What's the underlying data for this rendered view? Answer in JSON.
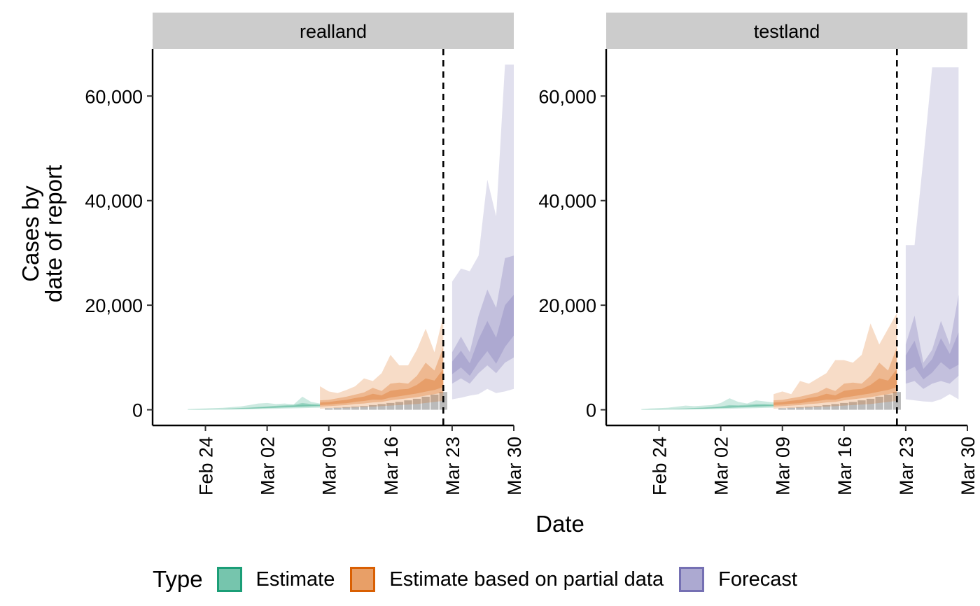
{
  "chart_data": {
    "type": "area",
    "ylabel_lines": [
      "Cases by",
      "date of report"
    ],
    "xlabel": "Date",
    "y_ticks": [
      0,
      20000,
      40000,
      60000
    ],
    "y_tick_labels": [
      "0",
      "20,000",
      "40,000",
      "60,000"
    ],
    "ylim": [
      -3000,
      69000
    ],
    "x_ticks": [
      "2020-02-24",
      "2020-03-02",
      "2020-03-09",
      "2020-03-16",
      "2020-03-23",
      "2020-03-30"
    ],
    "x_tick_labels": [
      "Feb 24",
      "Mar 02",
      "Mar 09",
      "Mar 16",
      "Mar 23",
      "Mar 30"
    ],
    "xlim": [
      "2020-02-18",
      "2020-03-30"
    ],
    "colors": {
      "estimate": "#1b9e77",
      "partial": "#d95f02",
      "forecast": "#7570b3",
      "reported": "#9e9e9e",
      "strip": "#cccccc"
    },
    "legend": {
      "title": "Type",
      "items": [
        {
          "key": "estimate",
          "label": "Estimate"
        },
        {
          "key": "partial",
          "label": "Estimate based on partial data"
        },
        {
          "key": "forecast",
          "label": "Forecast"
        }
      ]
    },
    "panels": [
      {
        "name": "realland",
        "vline_date": "2020-03-22",
        "estimate": {
          "dates": [
            "2020-02-22",
            "2020-02-23",
            "2020-02-24",
            "2020-02-25",
            "2020-02-26",
            "2020-02-27",
            "2020-02-28",
            "2020-02-29",
            "2020-03-01",
            "2020-03-02",
            "2020-03-03",
            "2020-03-04",
            "2020-03-05",
            "2020-03-06",
            "2020-03-07",
            "2020-03-08"
          ],
          "median": [
            40,
            60,
            80,
            100,
            130,
            170,
            220,
            280,
            350,
            430,
            520,
            600,
            680,
            760,
            830,
            880
          ],
          "lower90": [
            10,
            20,
            25,
            35,
            45,
            60,
            80,
            100,
            130,
            160,
            200,
            240,
            280,
            320,
            360,
            400
          ],
          "upper90": [
            150,
            200,
            250,
            300,
            380,
            500,
            650,
            900,
            1200,
            1300,
            1100,
            1200,
            1000,
            2500,
            1500,
            1200
          ],
          "lower50": [
            25,
            35,
            50,
            65,
            85,
            110,
            150,
            190,
            240,
            300,
            360,
            420,
            480,
            540,
            600,
            650
          ],
          "upper50": [
            70,
            100,
            130,
            160,
            200,
            260,
            340,
            430,
            530,
            640,
            760,
            860,
            960,
            1300,
            1100,
            1000
          ]
        },
        "partial": {
          "dates": [
            "2020-03-08",
            "2020-03-09",
            "2020-03-10",
            "2020-03-11",
            "2020-03-12",
            "2020-03-13",
            "2020-03-14",
            "2020-03-15",
            "2020-03-16",
            "2020-03-17",
            "2020-03-18",
            "2020-03-19",
            "2020-03-20",
            "2020-03-21",
            "2020-03-22"
          ],
          "median": [
            1100,
            1200,
            1400,
            1500,
            1800,
            2000,
            2300,
            2200,
            2700,
            3000,
            3300,
            3600,
            4000,
            4300,
            5000
          ],
          "lower90": [
            200,
            300,
            350,
            400,
            450,
            500,
            600,
            700,
            800,
            900,
            1000,
            1100,
            1300,
            1500,
            1700
          ],
          "upper90": [
            4500,
            3500,
            3200,
            3800,
            4500,
            6000,
            5500,
            7000,
            10500,
            8500,
            8500,
            11500,
            15500,
            11000,
            18000
          ],
          "lower50": [
            600,
            700,
            800,
            900,
            1100,
            1200,
            1400,
            1500,
            1800,
            2000,
            2200,
            2400,
            2700,
            3000,
            3300
          ],
          "upper50": [
            1800,
            1900,
            2200,
            2500,
            2900,
            3300,
            4200,
            3600,
            5000,
            5200,
            5000,
            6500,
            9000,
            7500,
            12000
          ]
        },
        "forecast": {
          "dates": [
            "2020-03-23",
            "2020-03-24",
            "2020-03-25",
            "2020-03-26",
            "2020-03-27",
            "2020-03-28",
            "2020-03-29",
            "2020-03-30"
          ],
          "median": [
            8000,
            9500,
            7500,
            10500,
            13000,
            10000,
            14000,
            17000
          ],
          "lower90": [
            2000,
            2300,
            2700,
            3000,
            4000,
            3200,
            3500,
            4000
          ],
          "upper90": [
            24500,
            27000,
            26500,
            29500,
            44000,
            37000,
            66000,
            66000
          ],
          "lower50": [
            5000,
            6000,
            5000,
            7000,
            8500,
            7000,
            9000,
            10000
          ],
          "upper50": [
            11000,
            14000,
            11000,
            18000,
            23000,
            19500,
            29000,
            29500
          ]
        },
        "reported": {
          "dates": [
            "2020-03-09",
            "2020-03-10",
            "2020-03-11",
            "2020-03-12",
            "2020-03-13",
            "2020-03-14",
            "2020-03-15",
            "2020-03-16",
            "2020-03-17",
            "2020-03-18",
            "2020-03-19",
            "2020-03-20",
            "2020-03-21",
            "2020-03-22"
          ],
          "values": [
            300,
            400,
            500,
            600,
            700,
            900,
            1100,
            1300,
            1500,
            1800,
            2100,
            2500,
            2900,
            3400
          ]
        }
      },
      {
        "name": "testland",
        "vline_date": "2020-03-22",
        "estimate": {
          "dates": [
            "2020-02-22",
            "2020-02-23",
            "2020-02-24",
            "2020-02-25",
            "2020-02-26",
            "2020-02-27",
            "2020-02-28",
            "2020-02-29",
            "2020-03-01",
            "2020-03-02",
            "2020-03-03",
            "2020-03-04",
            "2020-03-05",
            "2020-03-06",
            "2020-03-07",
            "2020-03-08"
          ],
          "median": [
            40,
            60,
            80,
            100,
            130,
            170,
            220,
            280,
            350,
            430,
            520,
            600,
            680,
            760,
            830,
            880
          ],
          "lower90": [
            10,
            20,
            25,
            35,
            45,
            60,
            80,
            100,
            130,
            160,
            200,
            240,
            280,
            320,
            360,
            400
          ],
          "upper90": [
            150,
            250,
            300,
            400,
            600,
            800,
            700,
            800,
            900,
            1300,
            2200,
            1500,
            1200,
            1800,
            1600,
            1400
          ],
          "lower50": [
            25,
            35,
            50,
            65,
            85,
            110,
            150,
            190,
            240,
            300,
            360,
            420,
            480,
            540,
            600,
            650
          ],
          "upper50": [
            70,
            100,
            130,
            160,
            200,
            260,
            340,
            430,
            530,
            640,
            900,
            860,
            960,
            1100,
            1100,
            1000
          ]
        },
        "partial": {
          "dates": [
            "2020-03-08",
            "2020-03-09",
            "2020-03-10",
            "2020-03-11",
            "2020-03-12",
            "2020-03-13",
            "2020-03-14",
            "2020-03-15",
            "2020-03-16",
            "2020-03-17",
            "2020-03-18",
            "2020-03-19",
            "2020-03-20",
            "2020-03-21",
            "2020-03-22"
          ],
          "median": [
            1100,
            1200,
            1400,
            1500,
            1800,
            2000,
            2300,
            2200,
            2700,
            3000,
            3300,
            3600,
            4000,
            4300,
            5000
          ],
          "lower90": [
            200,
            300,
            350,
            400,
            450,
            500,
            600,
            700,
            800,
            900,
            1000,
            1100,
            1300,
            1500,
            1700
          ],
          "upper90": [
            3000,
            3500,
            3000,
            5500,
            5000,
            6000,
            7000,
            9500,
            9500,
            9000,
            10500,
            16500,
            12500,
            15500,
            18500
          ],
          "lower50": [
            600,
            700,
            800,
            900,
            1100,
            1200,
            1400,
            1500,
            1800,
            2000,
            2200,
            2400,
            2700,
            3000,
            3300
          ],
          "upper50": [
            1800,
            1900,
            2200,
            2500,
            2900,
            3300,
            4200,
            3600,
            5000,
            5200,
            5000,
            6500,
            9000,
            7500,
            12000
          ]
        },
        "forecast": {
          "dates": [
            "2020-03-23",
            "2020-03-24",
            "2020-03-25",
            "2020-03-26",
            "2020-03-27",
            "2020-03-28",
            "2020-03-29"
          ],
          "median": [
            9000,
            10000,
            7000,
            8500,
            11500,
            9500,
            10000
          ],
          "lower90": [
            2000,
            1800,
            1600,
            1500,
            2000,
            3000,
            2000
          ],
          "upper90": [
            31500,
            31500,
            48000,
            65500,
            65500,
            65500,
            65500
          ],
          "lower50": [
            5000,
            5500,
            4000,
            5000,
            5500,
            5000,
            6500
          ],
          "upper50": [
            12500,
            18000,
            9000,
            11500,
            17000,
            12500,
            22000
          ]
        },
        "reported": {
          "dates": [
            "2020-03-09",
            "2020-03-10",
            "2020-03-11",
            "2020-03-12",
            "2020-03-13",
            "2020-03-14",
            "2020-03-15",
            "2020-03-16",
            "2020-03-17",
            "2020-03-18",
            "2020-03-19",
            "2020-03-20",
            "2020-03-21",
            "2020-03-22"
          ],
          "values": [
            300,
            400,
            500,
            600,
            700,
            900,
            1100,
            1300,
            1500,
            1800,
            2100,
            2500,
            2900,
            3400
          ]
        }
      }
    ]
  }
}
